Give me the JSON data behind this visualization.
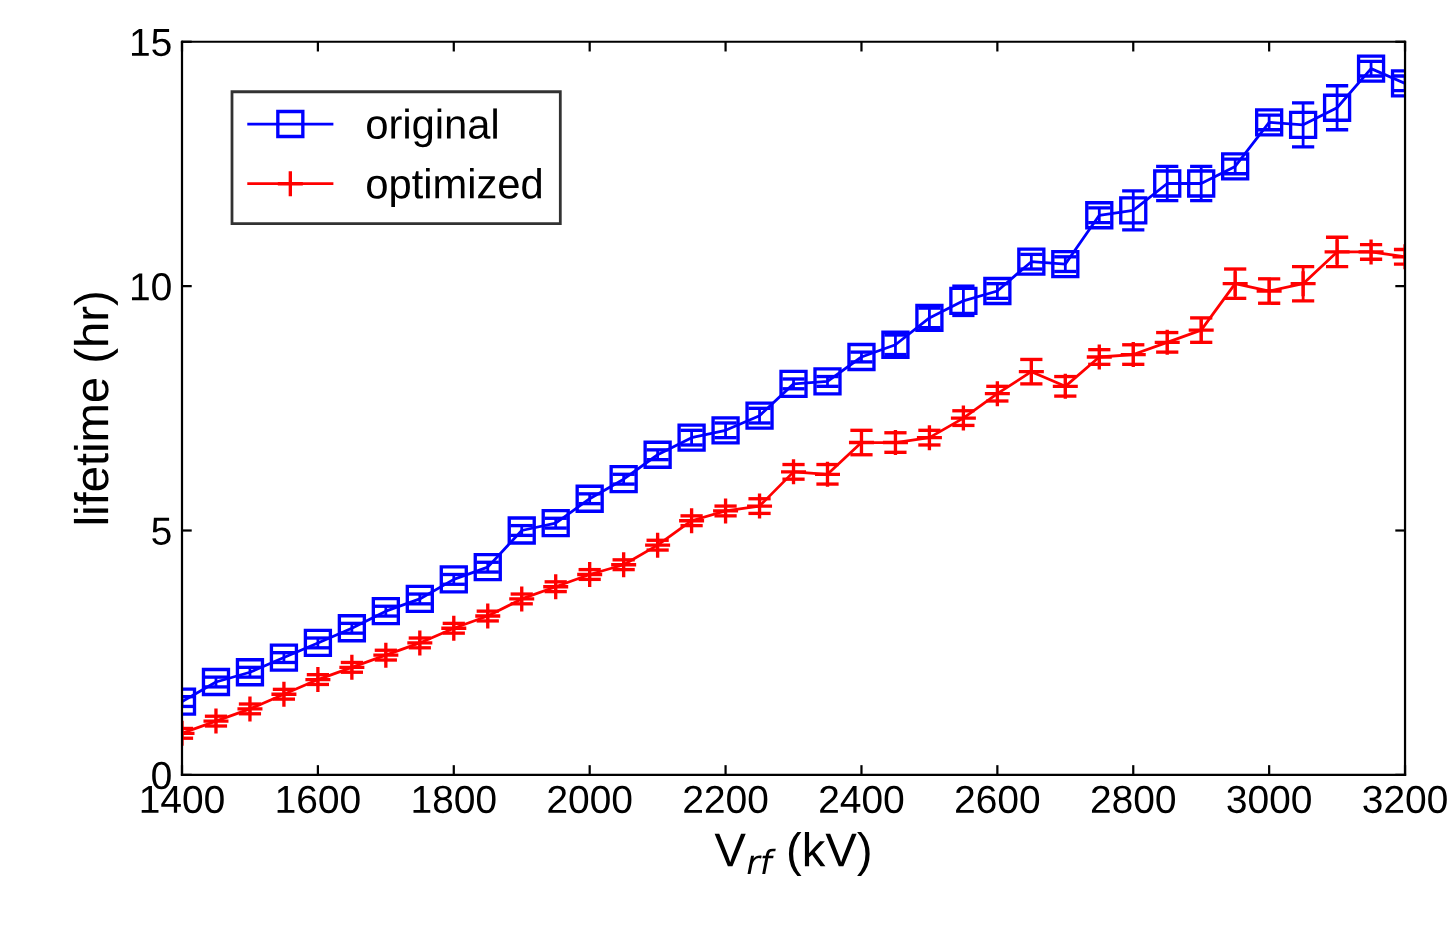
{
  "chart_data": {
    "type": "line",
    "xlabel": "V$_{rf}$ (kV)",
    "ylabel": "lifetime (hr)",
    "x": [
      1400,
      1450,
      1500,
      1550,
      1600,
      1650,
      1700,
      1750,
      1800,
      1850,
      1900,
      1950,
      2000,
      2050,
      2100,
      2150,
      2200,
      2250,
      2300,
      2350,
      2400,
      2450,
      2500,
      2550,
      2600,
      2650,
      2700,
      2750,
      2800,
      2850,
      2900,
      2950,
      3000,
      3050,
      3100,
      3150,
      3200
    ],
    "series": [
      {
        "name": "original",
        "color": "#0000ff",
        "marker": "square",
        "values": [
          1.5,
          1.9,
          2.1,
          2.4,
          2.7,
          3.0,
          3.35,
          3.6,
          4.0,
          4.25,
          5.0,
          5.15,
          5.65,
          6.05,
          6.55,
          6.9,
          7.05,
          7.35,
          8.0,
          8.05,
          8.55,
          8.8,
          9.35,
          9.7,
          9.9,
          10.5,
          10.45,
          11.45,
          11.55,
          12.1,
          12.1,
          12.45,
          13.35,
          13.3,
          13.65,
          14.45,
          14.15
        ],
        "errors": [
          0.1,
          0.1,
          0.1,
          0.1,
          0.1,
          0.1,
          0.1,
          0.1,
          0.1,
          0.1,
          0.1,
          0.1,
          0.1,
          0.1,
          0.1,
          0.15,
          0.15,
          0.15,
          0.1,
          0.1,
          0.1,
          0.2,
          0.2,
          0.3,
          0.15,
          0.15,
          0.15,
          0.15,
          0.4,
          0.35,
          0.35,
          0.15,
          0.15,
          0.45,
          0.45,
          0.15,
          0.15
        ]
      },
      {
        "name": "optimized",
        "color": "#ff0000",
        "marker": "cross",
        "values": [
          0.85,
          1.1,
          1.35,
          1.65,
          1.95,
          2.2,
          2.45,
          2.7,
          3.0,
          3.25,
          3.6,
          3.85,
          4.1,
          4.3,
          4.7,
          5.2,
          5.4,
          5.5,
          6.2,
          6.15,
          6.8,
          6.8,
          6.9,
          7.3,
          7.8,
          8.25,
          7.95,
          8.55,
          8.6,
          8.85,
          9.1,
          10.05,
          9.9,
          10.05,
          10.7,
          10.7,
          10.6
        ],
        "errors": [
          0.1,
          0.1,
          0.1,
          0.1,
          0.1,
          0.1,
          0.1,
          0.1,
          0.1,
          0.1,
          0.1,
          0.1,
          0.1,
          0.1,
          0.1,
          0.1,
          0.1,
          0.15,
          0.15,
          0.2,
          0.25,
          0.2,
          0.15,
          0.15,
          0.15,
          0.25,
          0.2,
          0.15,
          0.2,
          0.2,
          0.25,
          0.3,
          0.25,
          0.35,
          0.3,
          0.15,
          0.15
        ]
      }
    ],
    "xlim": [
      1400,
      3200
    ],
    "xticks": [
      1400,
      1600,
      1800,
      2000,
      2200,
      2400,
      2600,
      2800,
      3000,
      3200
    ],
    "ylim": [
      0,
      15
    ],
    "yticks": [
      0,
      5,
      10,
      15
    ],
    "grid": false,
    "legend": "top left",
    "line_style": "solid"
  }
}
